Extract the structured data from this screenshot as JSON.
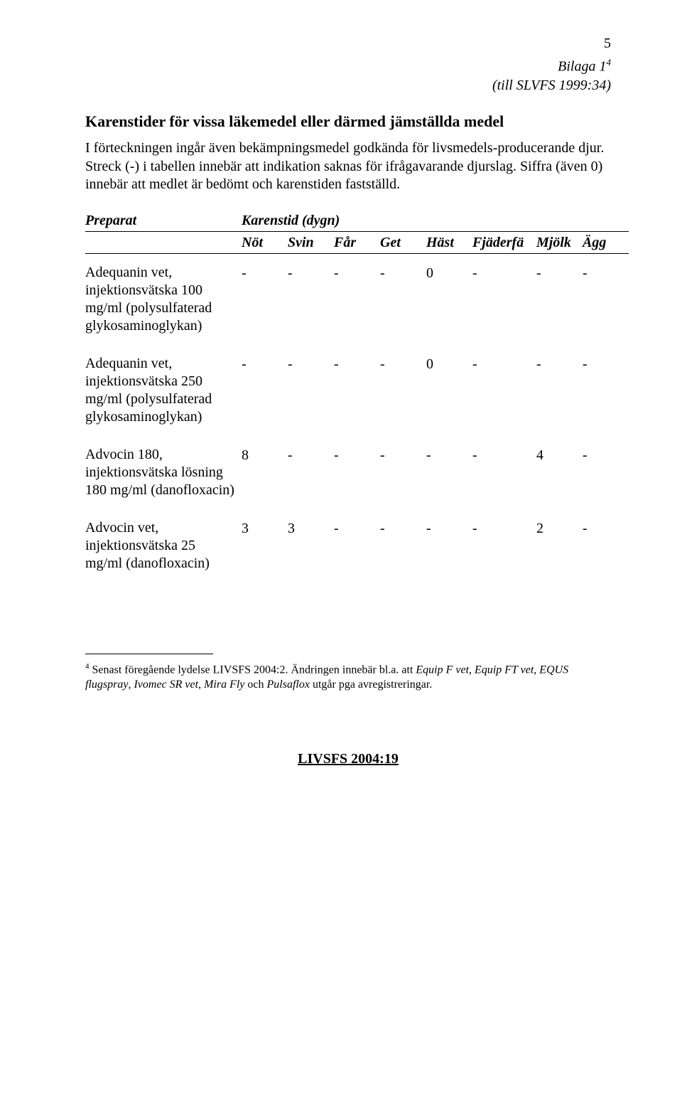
{
  "page_number": "5",
  "bilaga": {
    "line1_prefix": "Bilaga 1",
    "line1_sup": "4",
    "line2": "(till SLVFS 1999:34)"
  },
  "heading": "Karenstider för vissa läkemedel eller därmed jämställda medel",
  "intro": "I förteckningen ingår även bekämpningsmedel godkända för livsmedels-producerande djur. Streck (-) i tabellen innebär att indikation saknas för ifrågavarande djurslag. Siffra (även 0) innebär att medlet är bedömt och karenstiden fastställd.",
  "table": {
    "header1_col1": "Preparat",
    "header1_col2": "Karenstid (dygn)",
    "cols": [
      "Nöt",
      "Svin",
      "Får",
      "Get",
      "Häst",
      "Fjäderfä",
      "Mjölk",
      "Ägg"
    ],
    "rows": [
      {
        "prep": "Adequanin vet, injektionsvätska 100 mg/ml (polysulfaterad glykosaminoglykan)",
        "vals": [
          "-",
          "-",
          "-",
          "-",
          "0",
          "-",
          "-",
          "-"
        ]
      },
      {
        "prep": "Adequanin vet, injektionsvätska 250 mg/ml (polysulfaterad glykosaminoglykan)",
        "vals": [
          "-",
          "-",
          "-",
          "-",
          "0",
          "-",
          "-",
          "-"
        ]
      },
      {
        "prep": "Advocin 180, injektionsvätska lösning 180 mg/ml (danofloxacin)",
        "vals": [
          "8",
          "-",
          "-",
          "-",
          "-",
          "-",
          "4",
          "-"
        ]
      },
      {
        "prep": "Advocin vet, injektionsvätska 25 mg/ml (danofloxacin)",
        "vals": [
          "3",
          "3",
          "-",
          "-",
          "-",
          "-",
          "2",
          "-"
        ]
      }
    ]
  },
  "footnote": {
    "sup": "4",
    "text_before_italics": " Senast föregående lydelse LIVSFS 2004:2. Ändringen innebär bl.a. att ",
    "ital1": "Equip F vet",
    "sep1": ", ",
    "ital2": "Equip FT vet",
    "sep2": ", ",
    "ital3": "EQUS flugspray",
    "sep3": ", ",
    "ital4": "Ivomec SR vet",
    "sep4": ", ",
    "ital5": "Mira Fly",
    "sep5": " och ",
    "ital6": "Pulsaflox",
    "text_after": " utgår pga avregistreringar."
  },
  "footer": "LIVSFS 2004:19"
}
